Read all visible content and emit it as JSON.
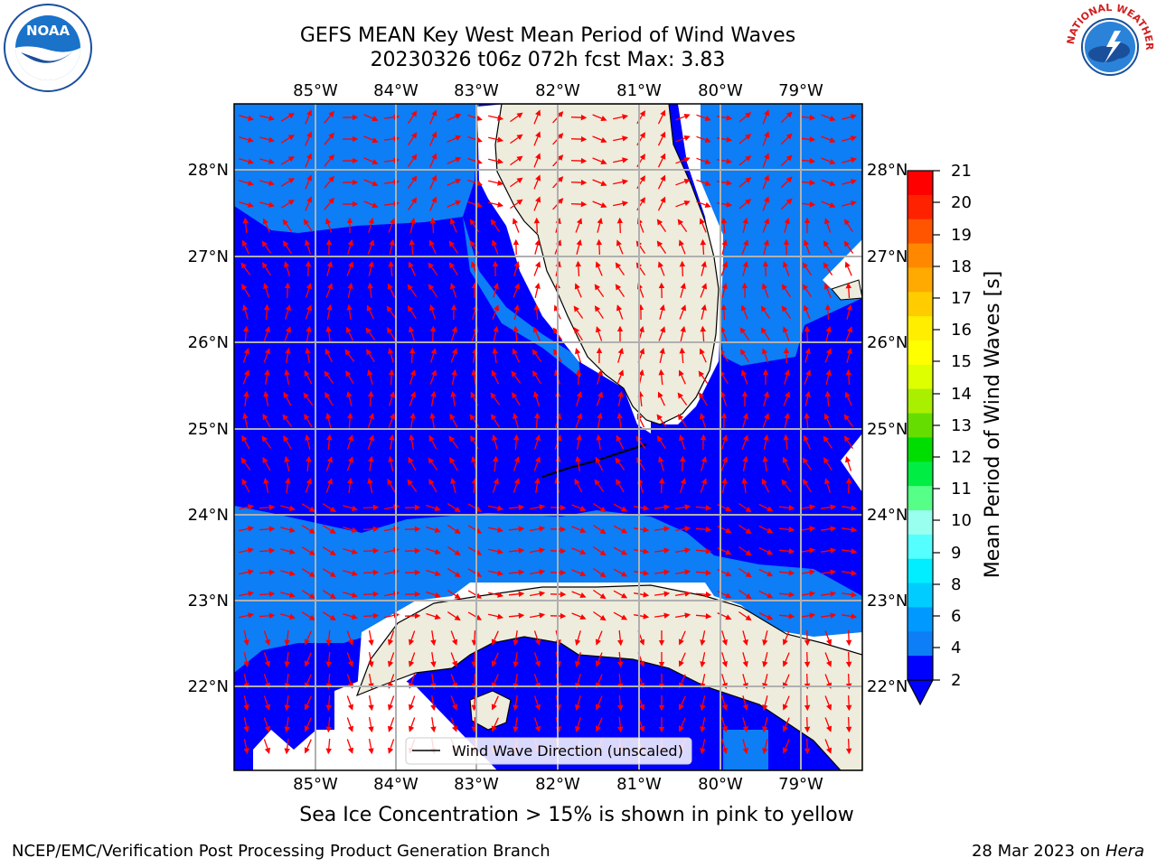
{
  "title": {
    "line1": "GEFS MEAN Key West Mean Period of Wind Waves",
    "line2": "20230326 t06z 072h fcst   Max: 3.83"
  },
  "logos": {
    "left": {
      "icon": "noaa-logo",
      "text": "NOAA"
    },
    "right": {
      "icon": "nws-logo",
      "text": "NATIONAL WEATHER SERVICE"
    }
  },
  "map": {
    "lon_labels": [
      "85°W",
      "84°W",
      "83°W",
      "82°W",
      "81°W",
      "80°W",
      "79°W"
    ],
    "lat_labels": [
      "28°N",
      "27°N",
      "26°N",
      "25°N",
      "24°N",
      "23°N",
      "22°N"
    ],
    "legend_label": "Wind Wave Direction (unscaled)",
    "arrow_color": "#ff0000",
    "land_color": "#eeecdc",
    "water_colors": {
      "2-4": "#0d7ef5",
      "<2": "#0000ff"
    }
  },
  "colorbar": {
    "label": "Mean Period of Wind Waves [s]",
    "ticks": [
      "21",
      "20",
      "19",
      "18",
      "17",
      "16",
      "15",
      "14",
      "13",
      "12",
      "11",
      "10",
      "9",
      "8",
      "6",
      "4",
      "2"
    ],
    "colors": [
      "#ff0000",
      "#ff2200",
      "#ff5500",
      "#ff8800",
      "#ffaa00",
      "#ffcc00",
      "#ffee00",
      "#ffff00",
      "#ddff00",
      "#aaee00",
      "#66dd00",
      "#00dd00",
      "#00ee44",
      "#55ff88",
      "#99ffee",
      "#55ffff",
      "#00eeff",
      "#00ccff",
      "#0099ff",
      "#0d7ef5",
      "#0000ff"
    ]
  },
  "subnote": "Sea Ice Concentration > 15% is shown in pink to yellow",
  "footer": {
    "left": "NCEP/EMC/Verification Post Processing Product Generation Branch",
    "right_date": "28 Mar 2023 on ",
    "right_host": "Hera"
  }
}
